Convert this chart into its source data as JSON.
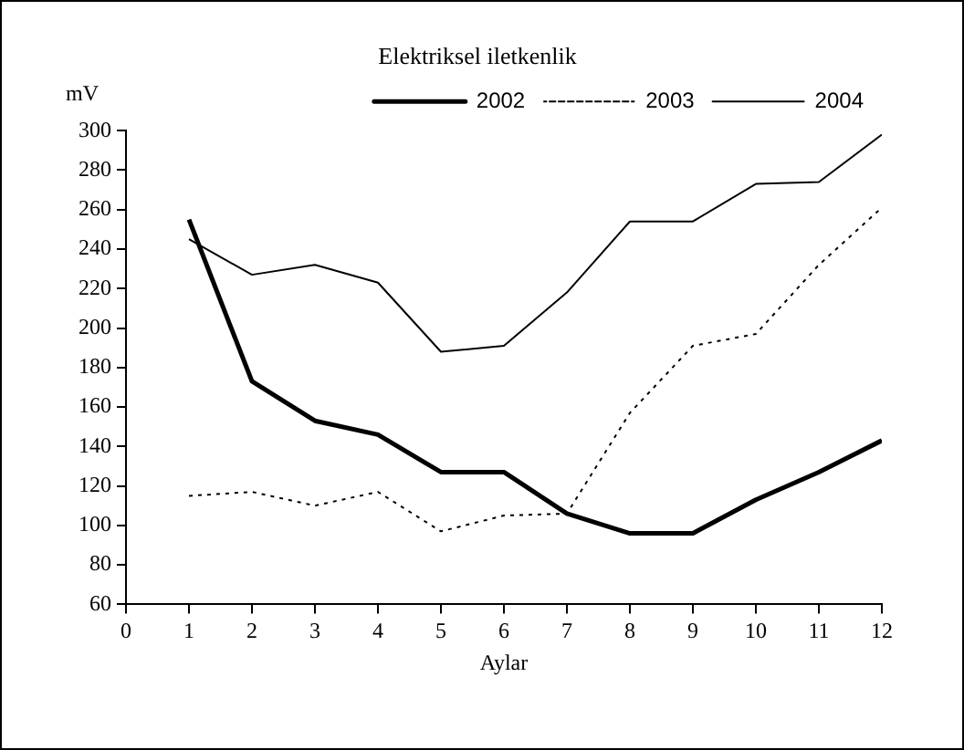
{
  "chart_data": {
    "type": "line",
    "title": "Elektriksel iletkenlik",
    "xlabel": "Aylar",
    "ylabel": "mV",
    "x": [
      1,
      2,
      3,
      4,
      5,
      6,
      7,
      8,
      9,
      10,
      11,
      12
    ],
    "xlim": [
      0,
      12
    ],
    "xticks": [
      0,
      1,
      2,
      3,
      4,
      5,
      6,
      7,
      8,
      9,
      10,
      11,
      12
    ],
    "ylim": [
      60,
      300
    ],
    "yticks": [
      60,
      80,
      100,
      120,
      140,
      160,
      180,
      200,
      220,
      240,
      260,
      280,
      300
    ],
    "grid": false,
    "legend": "top right",
    "marker": "none",
    "series": [
      {
        "name": "2002",
        "color": "#000000",
        "line_style": "solid",
        "values": [
          255,
          173,
          153,
          146,
          127,
          127,
          106,
          96,
          96,
          113,
          127,
          143
        ]
      },
      {
        "name": "2003",
        "color": "#000000",
        "line_style": "dotted",
        "values": [
          115,
          117,
          110,
          117,
          97,
          105,
          106,
          157,
          191,
          197,
          232,
          261
        ]
      },
      {
        "name": "2004",
        "color": "#000000",
        "line_style": "solid",
        "values": [
          245,
          227,
          232,
          223,
          188,
          191,
          218,
          254,
          254,
          273,
          274,
          298
        ]
      }
    ]
  }
}
